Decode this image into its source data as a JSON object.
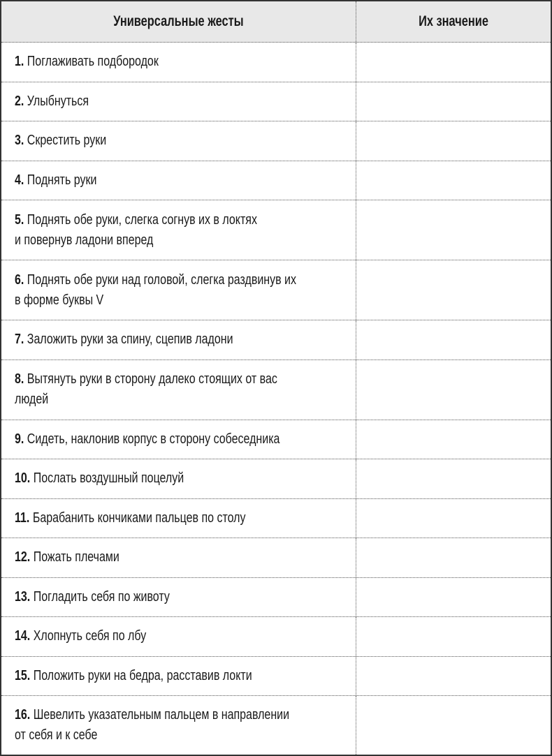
{
  "header": {
    "col1": "Универсальные жесты",
    "col2": "Их значение"
  },
  "rows": [
    {
      "num": "1.",
      "lines": [
        "Поглаживать подбородок"
      ]
    },
    {
      "num": "2.",
      "lines": [
        "Улыбнуться"
      ]
    },
    {
      "num": "3.",
      "lines": [
        "Скрестить руки"
      ]
    },
    {
      "num": "4.",
      "lines": [
        "Поднять руки"
      ]
    },
    {
      "num": "5.",
      "lines": [
        "Поднять обе руки, слегка согнув их в локтях",
        "и повернув ладони вперед"
      ]
    },
    {
      "num": "6.",
      "lines": [
        "Поднять обе руки над головой, слегка раздвинув их",
        "в форме буквы V"
      ]
    },
    {
      "num": "7.",
      "lines": [
        "Заложить руки за спину, сцепив ладони"
      ]
    },
    {
      "num": "8.",
      "lines": [
        "Вытянуть руки в сторону далеко стоящих от вас",
        "людей"
      ]
    },
    {
      "num": "9.",
      "lines": [
        "Сидеть, наклонив корпус в сторону собеседника"
      ]
    },
    {
      "num": "10.",
      "lines": [
        "Послать воздушный поцелуй"
      ]
    },
    {
      "num": "11.",
      "lines": [
        "Барабанить кончиками пальцев по столу"
      ]
    },
    {
      "num": "12.",
      "lines": [
        "Пожать плечами"
      ]
    },
    {
      "num": "13.",
      "lines": [
        "Погладить себя по животу"
      ]
    },
    {
      "num": "14.",
      "lines": [
        "Хлопнуть себя по лбу"
      ]
    },
    {
      "num": "15.",
      "lines": [
        "Положить руки на бедра, расставив локти"
      ]
    },
    {
      "num": "16.",
      "lines": [
        "Шевелить указательным пальцем в направлении",
        "от себя и к себе"
      ]
    }
  ]
}
